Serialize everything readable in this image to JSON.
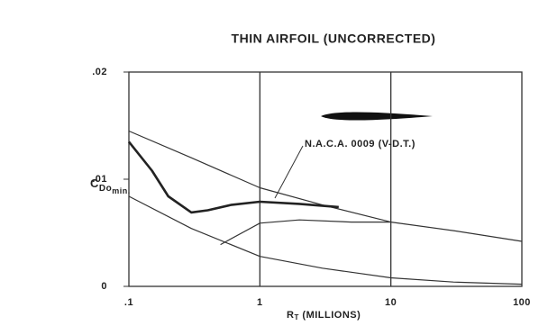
{
  "chart_data": {
    "type": "line",
    "title": "THIN AIRFOIL (UNCORRECTED)",
    "x_label": {
      "main": "R",
      "sub": "T",
      "rest": " (MILLIONS)"
    },
    "y_label": {
      "main": "C",
      "sub": "Do",
      "subsub": "min."
    },
    "log_x": true,
    "xlim": [
      0.1,
      100
    ],
    "ylim": [
      0,
      0.02
    ],
    "xticks": [
      {
        "value": 0.1,
        "label": ".1"
      },
      1,
      10,
      100
    ],
    "yticks": [
      0,
      {
        "value": 0.01,
        "label": ".01"
      },
      {
        "value": 0.02,
        "label": ".02"
      }
    ],
    "grid_x": true,
    "annotation": "N.A.C.A. 0009 (V-D.T.)",
    "series": [
      {
        "color": "#333333",
        "width": 1.2,
        "x": [
          0.1,
          0.3,
          1,
          3,
          10,
          30,
          100
        ],
        "values": [
          0.0145,
          0.012,
          0.0092,
          0.0076,
          0.006,
          0.0052,
          0.0042
        ]
      },
      {
        "color": "#333333",
        "width": 1.2,
        "x": [
          0.1,
          0.3,
          1,
          3,
          10,
          30,
          100
        ],
        "values": [
          0.0084,
          0.0054,
          0.0028,
          0.0017,
          0.0008,
          0.0004,
          0.0002
        ]
      },
      {
        "color": "#333333",
        "width": 1.2,
        "x": [
          0.5,
          1,
          2,
          5,
          10
        ],
        "values": [
          0.0039,
          0.0059,
          0.0062,
          0.006,
          0.006
        ]
      },
      {
        "color": "#222222",
        "width": 2.6,
        "x": [
          0.1,
          0.15,
          0.2,
          0.3,
          0.4,
          0.6,
          1,
          2,
          4
        ],
        "values": [
          0.0135,
          0.0108,
          0.0084,
          0.0069,
          0.0071,
          0.0076,
          0.0079,
          0.0077,
          0.0074
        ]
      }
    ]
  }
}
